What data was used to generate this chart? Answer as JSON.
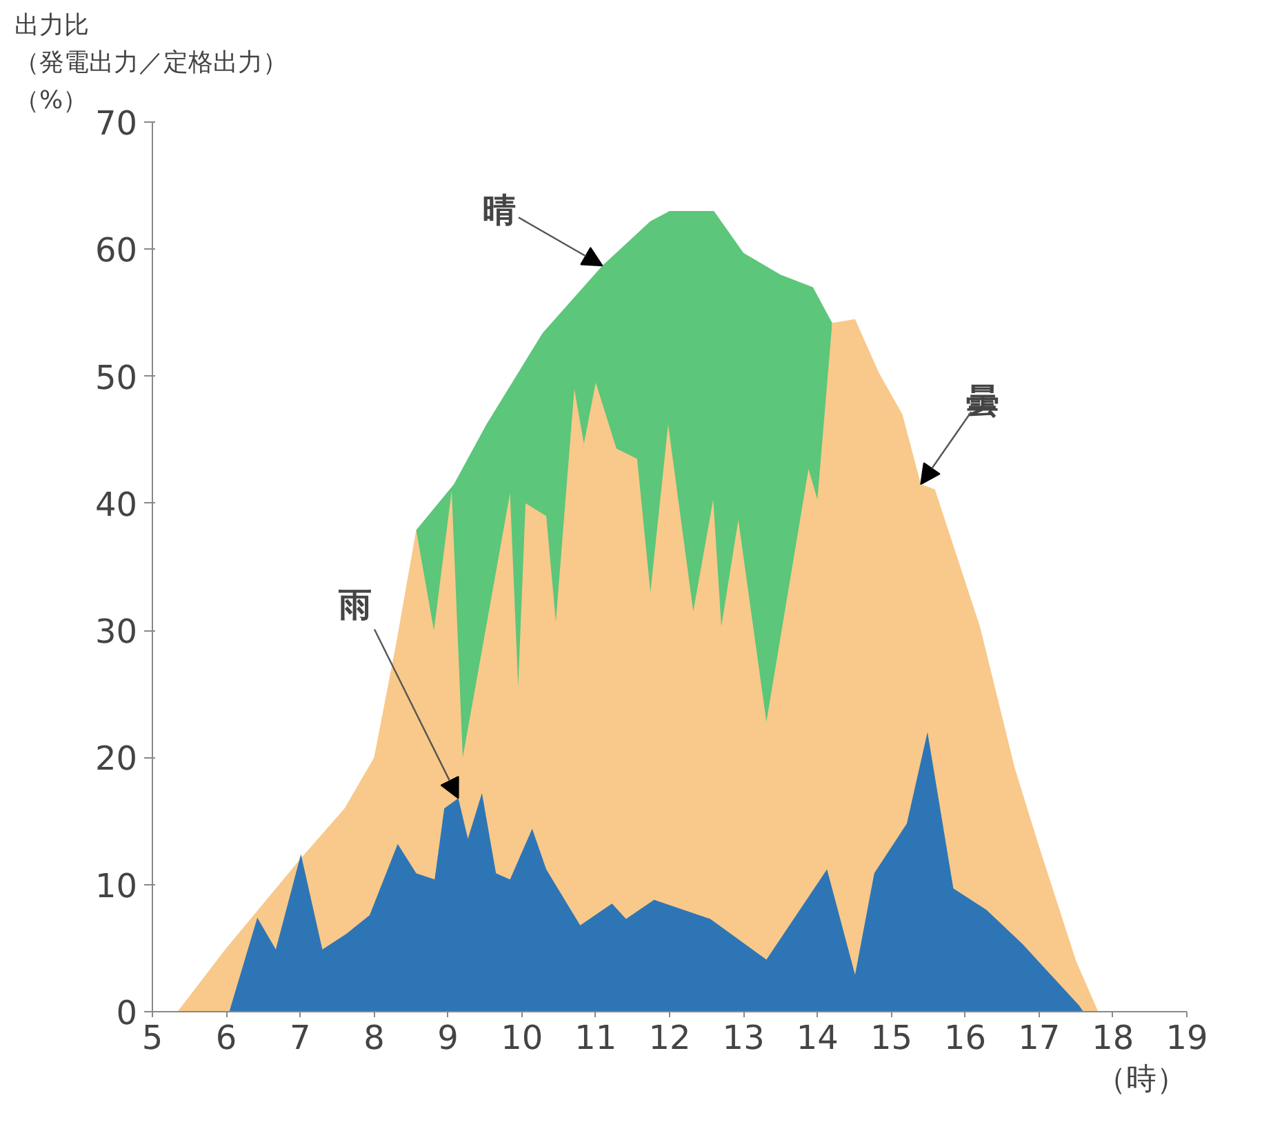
{
  "chart_data": {
    "type": "area",
    "ylabel": "出力比（発電出力／定格出力）（%）",
    "xlabel": "（時）",
    "xlim": [
      5,
      19
    ],
    "xticks": [
      5,
      6,
      7,
      8,
      9,
      10,
      11,
      12,
      13,
      14,
      15,
      16,
      17,
      18,
      19
    ],
    "ylim": [
      0,
      70
    ],
    "yticks": [
      0,
      10,
      20,
      30,
      40,
      50,
      60,
      70
    ],
    "grid": false,
    "series": [
      {
        "color": "#5cc67a",
        "x": [
          8.57,
          9.08,
          9.52,
          10.28,
          11.09,
          11.74,
          12.0,
          12.6,
          13.0,
          13.5,
          13.94,
          14.2
        ],
        "values": [
          37.9,
          41.5,
          46.2,
          53.4,
          58.7,
          62.2,
          63,
          63,
          59.7,
          58,
          57,
          54.2
        ]
      },
      {
        "color": "#f8c98a",
        "x": [
          5.34,
          6.0,
          7.0,
          7.6,
          8.0,
          8.3,
          8.57,
          8.81,
          9.05,
          9.2,
          9.84,
          9.95,
          10.05,
          10.33,
          10.46,
          10.71,
          10.84,
          11.0,
          11.28,
          11.56,
          11.74,
          11.98,
          12.32,
          12.59,
          12.7,
          12.93,
          13.31,
          13.88,
          14.0,
          14.2,
          14.51,
          14.83,
          15.15,
          15.4,
          15.59,
          16.2,
          16.67,
          17.0,
          17.5,
          17.8
        ],
        "values": [
          0,
          5,
          12,
          16,
          20,
          29,
          37.9,
          30,
          41,
          20,
          40.8,
          25.6,
          40,
          39,
          30.7,
          49,
          44.7,
          49.5,
          44.3,
          43.5,
          33,
          46.2,
          31.5,
          40.3,
          30.3,
          38.7,
          22.8,
          42.7,
          40.3,
          54.2,
          54.5,
          50.3,
          47,
          41.5,
          41.1,
          30.3,
          19.2,
          13,
          4,
          0
        ]
      },
      {
        "color": "#2e75b6",
        "x": [
          6.04,
          6.42,
          6.67,
          7.01,
          7.3,
          7.62,
          7.94,
          8.32,
          8.57,
          8.82,
          8.95,
          9.14,
          9.27,
          9.46,
          9.65,
          9.84,
          10.14,
          10.33,
          10.79,
          11.22,
          11.41,
          11.79,
          12.55,
          13.31,
          14.13,
          14.51,
          14.77,
          15.21,
          15.49,
          15.84,
          16.29,
          16.78,
          17.54,
          17.6
        ],
        "values": [
          0,
          7.4,
          4.9,
          12.4,
          4.9,
          6.1,
          7.6,
          13.2,
          10.9,
          10.4,
          16,
          16.8,
          13.6,
          17.2,
          10.9,
          10.4,
          14.4,
          11.2,
          6.8,
          8.5,
          7.3,
          8.8,
          7.3,
          4.1,
          11.2,
          2.9,
          10.9,
          14.8,
          22,
          9.7,
          8,
          5.3,
          0.5,
          0
        ]
      }
    ],
    "annotations": [
      {
        "text": "晴",
        "x": 11.09,
        "y": 58.7
      },
      {
        "text": "曇",
        "x": 15.4,
        "y": 41.5
      },
      {
        "text": "雨",
        "x": 9.14,
        "y": 16.8
      }
    ]
  }
}
